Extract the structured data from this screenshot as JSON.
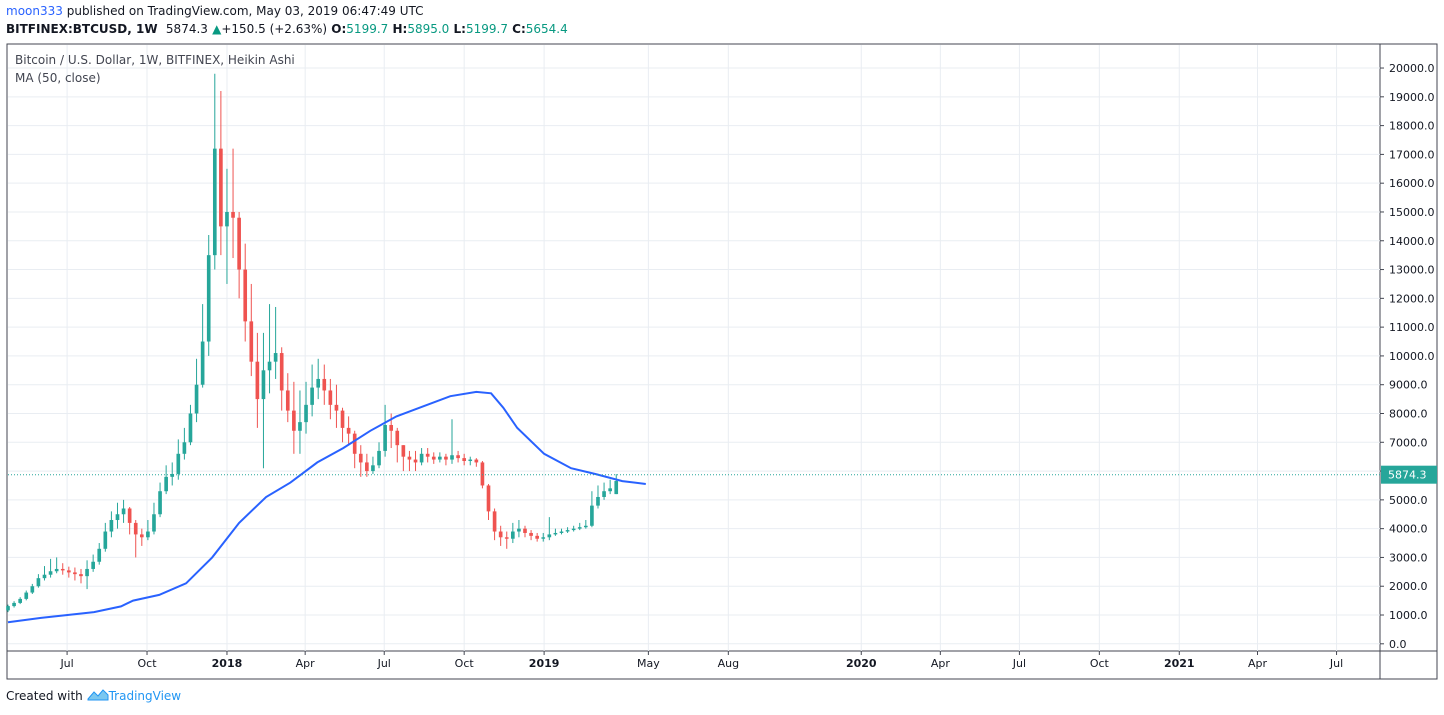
{
  "header": {
    "user": "moon333",
    "published_text": "published on TradingView.com, May 03, 2019 06:47:49 UTC",
    "symbol": "BITFINEX:BTCUSD, 1W",
    "last": "5874.3",
    "change_arrow": "▲",
    "change": "+150.5 (+2.63%)",
    "o_label": "O:",
    "o": "5199.7",
    "h_label": "H:",
    "h": "5895.0",
    "l_label": "L:",
    "l": "5199.7",
    "c_label": "C:",
    "c": "5654.4"
  },
  "legend": {
    "title": "Bitcoin / U.S. Dollar, 1W, BITFINEX, Heikin Ashi",
    "ma": "MA (50, close)"
  },
  "footer": {
    "created_with": "Created with",
    "brand": "TradingView"
  },
  "colors": {
    "up": "#26a69a",
    "down": "#ef5350",
    "ma": "#2962ff",
    "price_label_bg": "#26a69a",
    "grid": "#e9edf2"
  },
  "chart_data": {
    "type": "candlestick",
    "subtype": "heikin-ashi",
    "y_ticks": [
      "20000.0",
      "19000.0",
      "18000.0",
      "17000.0",
      "16000.0",
      "15000.0",
      "14000.0",
      "13000.0",
      "12000.0",
      "11000.0",
      "10000.0",
      "9000.0",
      "8000.0",
      "7000.0",
      "6000.0",
      "5000.0",
      "4000.0",
      "3000.0",
      "2000.0",
      "1000.0",
      "0.0"
    ],
    "ylim": [
      -250,
      20800
    ],
    "x_ticks": [
      {
        "label": "Jul",
        "bold": false,
        "date": "2017-07-01"
      },
      {
        "label": "Oct",
        "bold": false,
        "date": "2017-10-01"
      },
      {
        "label": "2018",
        "bold": true,
        "date": "2018-01-01"
      },
      {
        "label": "Apr",
        "bold": false,
        "date": "2018-04-01"
      },
      {
        "label": "Jul",
        "bold": false,
        "date": "2018-07-01"
      },
      {
        "label": "Oct",
        "bold": false,
        "date": "2018-10-01"
      },
      {
        "label": "2019",
        "bold": true,
        "date": "2019-01-01"
      },
      {
        "label": "May",
        "bold": false,
        "date": "2019-05-01"
      },
      {
        "label": "Aug",
        "bold": false,
        "date": "2019-08-01"
      },
      {
        "label": "2020",
        "bold": true,
        "date": "2020-01-01"
      },
      {
        "label": "Apr",
        "bold": false,
        "date": "2020-04-01"
      },
      {
        "label": "Jul",
        "bold": false,
        "date": "2020-07-01"
      },
      {
        "label": "Oct",
        "bold": false,
        "date": "2020-10-01"
      },
      {
        "label": "2021",
        "bold": true,
        "date": "2021-01-01"
      },
      {
        "label": "Apr",
        "bold": false,
        "date": "2021-04-01"
      },
      {
        "label": "Jul",
        "bold": false,
        "date": "2021-07-01"
      }
    ],
    "xlim": [
      "2017-04-24",
      "2021-08-20"
    ],
    "first_candle_date": "2017-04-24",
    "candle_interval_days": 7,
    "current_price": 5874.3,
    "current_price_label": "5874.3",
    "candles": [
      [
        1160,
        1310,
        1360,
        1100
      ],
      [
        1310,
        1420,
        1480,
        1260
      ],
      [
        1420,
        1560,
        1620,
        1380
      ],
      [
        1560,
        1780,
        1850,
        1510
      ],
      [
        1780,
        2000,
        2080,
        1730
      ],
      [
        2000,
        2280,
        2420,
        1950
      ],
      [
        2280,
        2400,
        2700,
        2200
      ],
      [
        2400,
        2520,
        2950,
        2300
      ],
      [
        2520,
        2600,
        3000,
        2450
      ],
      [
        2600,
        2550,
        2800,
        2400
      ],
      [
        2550,
        2480,
        2680,
        2300
      ],
      [
        2480,
        2420,
        2650,
        2200
      ],
      [
        2420,
        2350,
        2600,
        2100
      ],
      [
        2350,
        2600,
        2900,
        1900
      ],
      [
        2600,
        2850,
        3100,
        2500
      ],
      [
        2850,
        3300,
        3500,
        2750
      ],
      [
        3300,
        3900,
        4200,
        3200
      ],
      [
        3900,
        4300,
        4600,
        3700
      ],
      [
        4300,
        4500,
        4900,
        4000
      ],
      [
        4500,
        4700,
        5000,
        4200
      ],
      [
        4700,
        4200,
        4750,
        3800
      ],
      [
        4200,
        3800,
        4300,
        3000
      ],
      [
        3800,
        3700,
        4000,
        3400
      ],
      [
        3700,
        3900,
        4300,
        3600
      ],
      [
        3900,
        4500,
        4900,
        3800
      ],
      [
        4500,
        5300,
        5600,
        4400
      ],
      [
        5300,
        5800,
        6200,
        5200
      ],
      [
        5800,
        5900,
        6300,
        5500
      ],
      [
        5900,
        6600,
        7100,
        5700
      ],
      [
        6600,
        7000,
        7500,
        6400
      ],
      [
        7000,
        8000,
        8300,
        6900
      ],
      [
        8000,
        9000,
        9900,
        7700
      ],
      [
        9000,
        10500,
        11800,
        8900
      ],
      [
        10500,
        13500,
        14200,
        10000
      ],
      [
        13500,
        17200,
        19800,
        13000
      ],
      [
        17200,
        14500,
        19200,
        13500
      ],
      [
        14500,
        15000,
        16500,
        12500
      ],
      [
        15000,
        14800,
        17200,
        13400
      ],
      [
        14800,
        13000,
        15000,
        12000
      ],
      [
        13000,
        11200,
        13900,
        10500
      ],
      [
        11200,
        9800,
        12500,
        9300
      ],
      [
        9800,
        8500,
        10800,
        7500
      ],
      [
        8500,
        9500,
        10800,
        6100
      ],
      [
        9500,
        9800,
        11800,
        8700
      ],
      [
        9800,
        10100,
        11700,
        9200
      ],
      [
        10100,
        8800,
        10300,
        8100
      ],
      [
        8800,
        8100,
        9400,
        7700
      ],
      [
        8100,
        7400,
        9100,
        6600
      ],
      [
        7400,
        7700,
        8800,
        6600
      ],
      [
        7700,
        8300,
        9100,
        7300
      ],
      [
        8300,
        8900,
        9700,
        7900
      ],
      [
        8900,
        9200,
        9900,
        8500
      ],
      [
        9200,
        8800,
        9700,
        8300
      ],
      [
        8800,
        8300,
        9200,
        7800
      ],
      [
        8300,
        8100,
        9000,
        7500
      ],
      [
        8100,
        7500,
        8200,
        7000
      ],
      [
        7500,
        7300,
        7900,
        6900
      ],
      [
        7300,
        6600,
        7400,
        6100
      ],
      [
        6600,
        6300,
        6900,
        5800
      ],
      [
        6300,
        6000,
        6600,
        5800
      ],
      [
        6000,
        6200,
        6500,
        5900
      ],
      [
        6200,
        6700,
        7000,
        6100
      ],
      [
        6700,
        7600,
        8300,
        6500
      ],
      [
        7600,
        7400,
        8000,
        6800
      ],
      [
        7400,
        6900,
        7500,
        6300
      ],
      [
        6900,
        6500,
        6900,
        6000
      ],
      [
        6500,
        6400,
        6700,
        6000
      ],
      [
        6400,
        6300,
        6700,
        6000
      ],
      [
        6300,
        6600,
        6800,
        6200
      ],
      [
        6600,
        6500,
        6800,
        6300
      ],
      [
        6500,
        6400,
        6650,
        6250
      ],
      [
        6400,
        6500,
        6650,
        6300
      ],
      [
        6500,
        6400,
        6600,
        6200
      ],
      [
        6400,
        6550,
        7800,
        6250
      ],
      [
        6550,
        6450,
        6700,
        6300
      ],
      [
        6450,
        6350,
        6600,
        6200
      ],
      [
        6350,
        6400,
        6500,
        6200
      ],
      [
        6400,
        6300,
        6450,
        6150
      ],
      [
        6300,
        5500,
        6350,
        5400
      ],
      [
        5500,
        4600,
        5550,
        4300
      ],
      [
        4600,
        3900,
        4700,
        3600
      ],
      [
        3900,
        3700,
        4100,
        3400
      ],
      [
        3700,
        3650,
        3900,
        3300
      ],
      [
        3650,
        3900,
        4200,
        3500
      ],
      [
        3900,
        4000,
        4300,
        3700
      ],
      [
        4000,
        3850,
        4100,
        3700
      ],
      [
        3850,
        3750,
        3950,
        3600
      ],
      [
        3750,
        3650,
        3850,
        3550
      ],
      [
        3650,
        3700,
        3850,
        3550
      ],
      [
        3700,
        3800,
        4400,
        3600
      ],
      [
        3800,
        3850,
        4000,
        3750
      ],
      [
        3850,
        3900,
        4000,
        3800
      ],
      [
        3900,
        3950,
        4050,
        3850
      ],
      [
        3950,
        4000,
        4100,
        3900
      ],
      [
        4000,
        4050,
        4200,
        3950
      ],
      [
        4050,
        4100,
        4300,
        4000
      ],
      [
        4100,
        4800,
        5300,
        4050
      ],
      [
        4800,
        5100,
        5500,
        4700
      ],
      [
        5100,
        5300,
        5600,
        5000
      ],
      [
        5300,
        5400,
        5700,
        5200
      ],
      [
        5200,
        5654,
        5895,
        5200
      ]
    ],
    "ma_series": {
      "name": "MA (50, close)",
      "points": [
        [
          "2017-04-24",
          750
        ],
        [
          "2017-06-01",
          900
        ],
        [
          "2017-08-01",
          1100
        ],
        [
          "2017-09-01",
          1300
        ],
        [
          "2017-09-15",
          1500
        ],
        [
          "2017-10-15",
          1700
        ],
        [
          "2017-11-15",
          2100
        ],
        [
          "2017-12-15",
          3000
        ],
        [
          "2018-01-15",
          4200
        ],
        [
          "2018-02-15",
          5100
        ],
        [
          "2018-03-15",
          5600
        ],
        [
          "2018-04-15",
          6300
        ],
        [
          "2018-05-15",
          6800
        ],
        [
          "2018-06-15",
          7400
        ],
        [
          "2018-07-15",
          7900
        ],
        [
          "2018-08-15",
          8250
        ],
        [
          "2018-09-15",
          8600
        ],
        [
          "2018-10-15",
          8750
        ],
        [
          "2018-11-01",
          8700
        ],
        [
          "2018-11-15",
          8200
        ],
        [
          "2018-12-01",
          7500
        ],
        [
          "2019-01-01",
          6600
        ],
        [
          "2019-02-01",
          6100
        ],
        [
          "2019-03-01",
          5900
        ],
        [
          "2019-04-01",
          5650
        ],
        [
          "2019-04-28",
          5550
        ]
      ]
    }
  }
}
